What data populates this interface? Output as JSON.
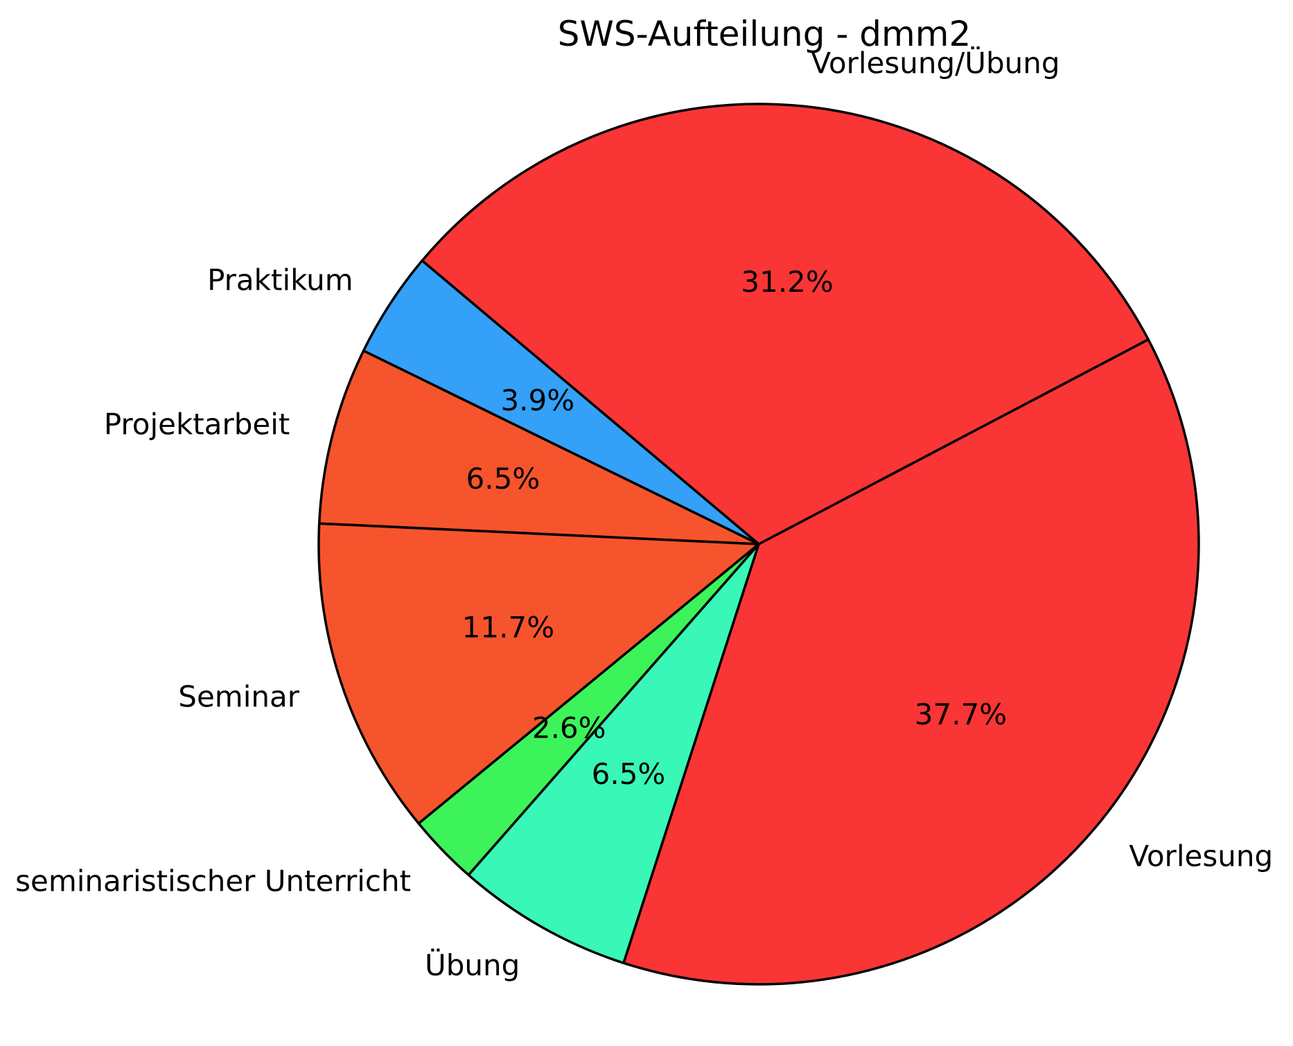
{
  "figure": {
    "background": "#ffffff"
  },
  "chart_data": {
    "type": "pie",
    "title": "SWS-Aufteilung - dmm2",
    "slices": [
      {
        "label": "Vorlesung/Übung",
        "value_pct": 31.2,
        "pct_label": "31.2%",
        "color": "#f93535"
      },
      {
        "label": "Praktikum",
        "value_pct": 3.9,
        "pct_label": "3.9%",
        "color": "#34a0f7"
      },
      {
        "label": "Projektarbeit",
        "value_pct": 6.5,
        "pct_label": "6.5%",
        "color": "#f6542d"
      },
      {
        "label": "Seminar",
        "value_pct": 11.7,
        "pct_label": "11.7%",
        "color": "#f6542d"
      },
      {
        "label": "seminaristischer Unterricht",
        "value_pct": 2.6,
        "pct_label": "2.6%",
        "color": "#3cf35a"
      },
      {
        "label": "Übung",
        "value_pct": 6.5,
        "pct_label": "6.5%",
        "color": "#39f7b6"
      },
      {
        "label": "Vorlesung",
        "value_pct": 37.7,
        "pct_label": "37.7%",
        "color": "#f93535"
      }
    ],
    "layout": {
      "start_angle_deg": 27.7,
      "direction": "counterclockwise",
      "label_distance": 1.1,
      "pct_distance": 0.6,
      "edge_color": "#000000",
      "edge_width": 3.5,
      "text_color": "#000000",
      "legend": "none",
      "grid": "off"
    }
  }
}
